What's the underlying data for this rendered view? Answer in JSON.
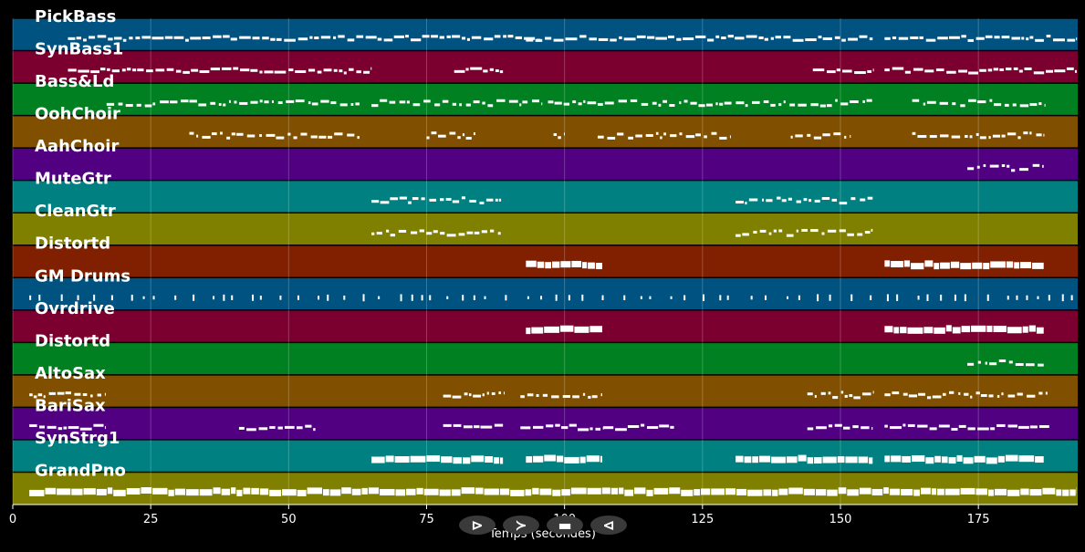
{
  "chart_data": {
    "type": "piano-roll",
    "xlabel": "Temps (secondes)",
    "xlim": [
      0,
      193
    ],
    "xticks": [
      0,
      25,
      50,
      75,
      100,
      125,
      150,
      175
    ],
    "grid": true,
    "tracks": [
      {
        "name": "PickBass",
        "color": "#005380",
        "style": "dense",
        "segments": [
          [
            10,
            96
          ],
          [
            93,
            156
          ],
          [
            158,
            193
          ]
        ]
      },
      {
        "name": "SynBass1",
        "color": "#7b0030",
        "style": "dense",
        "segments": [
          [
            10,
            65
          ],
          [
            80,
            89
          ],
          [
            145,
            156
          ],
          [
            158,
            193
          ]
        ]
      },
      {
        "name": "Bass&Ld",
        "color": "#008020",
        "style": "sparse",
        "segments": [
          [
            17,
            32
          ],
          [
            32,
            63
          ],
          [
            65,
            96
          ],
          [
            97,
            156
          ],
          [
            163,
            187
          ]
        ]
      },
      {
        "name": "OohChoir",
        "color": "#805000",
        "style": "sparse",
        "segments": [
          [
            32,
            63
          ],
          [
            75,
            84
          ],
          [
            98,
            100
          ],
          [
            106,
            130
          ],
          [
            141,
            152
          ],
          [
            163,
            187
          ]
        ]
      },
      {
        "name": "AahChoir",
        "color": "#500080",
        "style": "sparse",
        "segments": [
          [
            173,
            187
          ]
        ]
      },
      {
        "name": "MuteGtr",
        "color": "#008080",
        "style": "sparse",
        "segments": [
          [
            65,
            89
          ],
          [
            131,
            156
          ]
        ]
      },
      {
        "name": "CleanGtr",
        "color": "#808000",
        "style": "sparse",
        "segments": [
          [
            65,
            89
          ],
          [
            131,
            156
          ]
        ]
      },
      {
        "name": "Distortd",
        "color": "#802000",
        "style": "block",
        "segments": [
          [
            93,
            107
          ],
          [
            158,
            187
          ]
        ]
      },
      {
        "name": "GM Drums",
        "color": "#005380",
        "style": "ticks",
        "segments": [
          [
            3,
            193
          ]
        ]
      },
      {
        "name": "Ovrdrive",
        "color": "#7b0030",
        "style": "block",
        "segments": [
          [
            93,
            107
          ],
          [
            158,
            187
          ]
        ]
      },
      {
        "name": "Distortd",
        "color": "#008020",
        "style": "sparse",
        "segments": [
          [
            173,
            187
          ]
        ]
      },
      {
        "name": "AltoSax",
        "color": "#805000",
        "style": "sparse",
        "segments": [
          [
            3,
            17
          ],
          [
            78,
            89
          ],
          [
            92,
            107
          ],
          [
            144,
            156
          ],
          [
            158,
            188
          ]
        ]
      },
      {
        "name": "BariSax",
        "color": "#500080",
        "style": "dense",
        "segments": [
          [
            3,
            17
          ],
          [
            41,
            55
          ],
          [
            78,
            89
          ],
          [
            92,
            107
          ],
          [
            107,
            120
          ],
          [
            144,
            156
          ],
          [
            158,
            188
          ]
        ]
      },
      {
        "name": "SynStrg1",
        "color": "#008080",
        "style": "block",
        "segments": [
          [
            65,
            89
          ],
          [
            93,
            107
          ],
          [
            131,
            156
          ],
          [
            158,
            187
          ]
        ]
      },
      {
        "name": "GrandPno",
        "color": "#808000",
        "style": "block",
        "segments": [
          [
            3,
            193
          ]
        ]
      }
    ]
  },
  "controls": {
    "play_label": "⊳",
    "forward_label": "≻",
    "stop_label": "▬",
    "back_label": "⊲"
  }
}
